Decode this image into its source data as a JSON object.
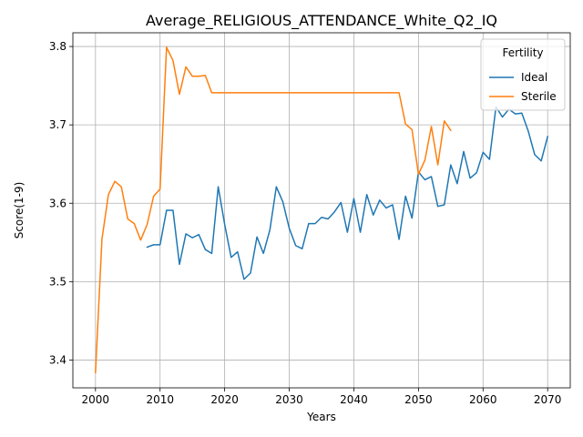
{
  "chart_data": {
    "type": "line",
    "title": "Average_RELIGIOUS_ATTENDANCE_White_Q2_IQ",
    "xlabel": "Years",
    "ylabel": "Score(1-9)",
    "xlim": [
      1996.5,
      2073.5
    ],
    "ylim": [
      3.3645,
      3.8175
    ],
    "xticks": [
      2000,
      2010,
      2020,
      2030,
      2040,
      2050,
      2060,
      2070
    ],
    "yticks": [
      3.4,
      3.5,
      3.6,
      3.7,
      3.8
    ],
    "xtick_labels": [
      "2000",
      "2010",
      "2020",
      "2030",
      "2040",
      "2050",
      "2060",
      "2070"
    ],
    "ytick_labels": [
      "3.4",
      "3.5",
      "3.6",
      "3.7",
      "3.8"
    ],
    "grid": true,
    "legend": {
      "title": "Fertility",
      "placement": "top-right"
    },
    "series": [
      {
        "name": "Ideal",
        "color": "#1f77b4",
        "x": [
          2008,
          2009,
          2010,
          2011,
          2012,
          2013,
          2014,
          2015,
          2016,
          2017,
          2018,
          2019,
          2020,
          2021,
          2022,
          2023,
          2024,
          2025,
          2026,
          2027,
          2028,
          2029,
          2030,
          2031,
          2032,
          2033,
          2034,
          2035,
          2036,
          2037,
          2038,
          2039,
          2040,
          2041,
          2042,
          2043,
          2044,
          2045,
          2046,
          2047,
          2048,
          2049,
          2050,
          2051,
          2052,
          2053,
          2054,
          2055,
          2056,
          2057,
          2058,
          2059,
          2060,
          2061,
          2062,
          2063,
          2064,
          2065,
          2066,
          2067,
          2068,
          2069,
          2070
        ],
        "values": [
          3.544,
          3.547,
          3.547,
          3.591,
          3.591,
          3.522,
          3.561,
          3.556,
          3.56,
          3.541,
          3.536,
          3.621,
          3.573,
          3.531,
          3.538,
          3.503,
          3.511,
          3.557,
          3.536,
          3.566,
          3.621,
          3.602,
          3.568,
          3.546,
          3.542,
          3.574,
          3.574,
          3.582,
          3.58,
          3.589,
          3.601,
          3.563,
          3.606,
          3.563,
          3.611,
          3.585,
          3.604,
          3.594,
          3.598,
          3.554,
          3.609,
          3.581,
          3.64,
          3.63,
          3.634,
          3.596,
          3.598,
          3.649,
          3.625,
          3.666,
          3.632,
          3.639,
          3.665,
          3.656,
          3.723,
          3.71,
          3.72,
          3.714,
          3.715,
          3.692,
          3.662,
          3.654,
          3.685
        ]
      },
      {
        "name": "Sterile",
        "color": "#ff7f0e",
        "x": [
          2000,
          2001,
          2002,
          2003,
          2004,
          2005,
          2006,
          2007,
          2008,
          2009,
          2010,
          2011,
          2012,
          2013,
          2014,
          2015,
          2016,
          2017,
          2018,
          2019,
          2020,
          2021,
          2022,
          2023,
          2024,
          2025,
          2026,
          2027,
          2028,
          2029,
          2030,
          2031,
          2032,
          2033,
          2034,
          2035,
          2036,
          2037,
          2038,
          2039,
          2040,
          2041,
          2042,
          2043,
          2044,
          2045,
          2046,
          2047,
          2048,
          2049,
          2050,
          2051,
          2052,
          2053,
          2054,
          2055
        ],
        "values": [
          3.384,
          3.554,
          3.611,
          3.628,
          3.621,
          3.58,
          3.574,
          3.553,
          3.573,
          3.609,
          3.618,
          3.799,
          3.782,
          3.739,
          3.774,
          3.762,
          3.762,
          3.763,
          3.741,
          3.741,
          3.741,
          3.741,
          3.741,
          3.741,
          3.741,
          3.741,
          3.741,
          3.741,
          3.741,
          3.741,
          3.741,
          3.741,
          3.741,
          3.741,
          3.741,
          3.741,
          3.741,
          3.741,
          3.741,
          3.741,
          3.741,
          3.741,
          3.741,
          3.741,
          3.741,
          3.741,
          3.741,
          3.741,
          3.701,
          3.694,
          3.637,
          3.655,
          3.698,
          3.649,
          3.705,
          3.693
        ]
      }
    ]
  }
}
